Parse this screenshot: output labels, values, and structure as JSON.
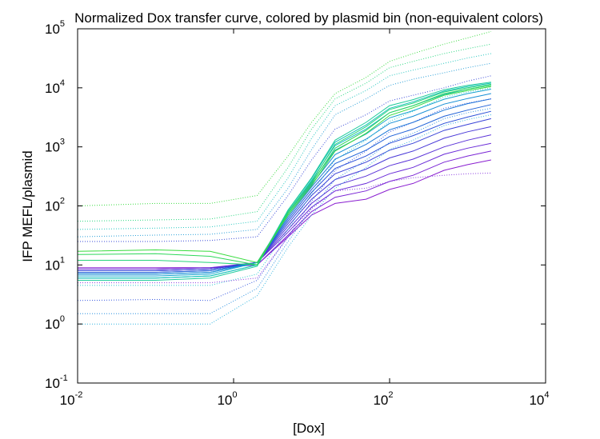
{
  "chart_data": {
    "type": "line",
    "title": "Normalized Dox transfer curve, colored by plasmid bin (non-equivalent colors)",
    "xlabel": "[Dox]",
    "ylabel": "IFP MEFL/plasmid",
    "xscale": "log",
    "yscale": "log",
    "xlim": [
      0.01,
      10000
    ],
    "ylim": [
      0.1,
      100000
    ],
    "x_ticks": [
      {
        "base": "10",
        "exp": "-2",
        "value": 0.01
      },
      {
        "base": "10",
        "exp": "0",
        "value": 1
      },
      {
        "base": "10",
        "exp": "2",
        "value": 100
      },
      {
        "base": "10",
        "exp": "4",
        "value": 10000
      }
    ],
    "y_ticks": [
      {
        "base": "10",
        "exp": "-1",
        "value": 0.1
      },
      {
        "base": "10",
        "exp": "0",
        "value": 1
      },
      {
        "base": "10",
        "exp": "1",
        "value": 10
      },
      {
        "base": "10",
        "exp": "2",
        "value": 100
      },
      {
        "base": "10",
        "exp": "3",
        "value": 1000
      },
      {
        "base": "10",
        "exp": "4",
        "value": 10000
      },
      {
        "base": "10",
        "exp": "5",
        "value": 100000
      }
    ],
    "x": [
      0.01,
      0.1,
      0.5,
      2,
      5,
      10,
      20,
      50,
      100,
      200,
      500,
      1000,
      2000
    ],
    "grid": false,
    "legend": "none",
    "series": [
      {
        "color": "#8a1fd0",
        "style": "solid",
        "values": [
          9,
          9,
          9,
          10,
          30,
          70,
          110,
          130,
          190,
          240,
          400,
          500,
          600
        ]
      },
      {
        "color": "#7a25d5",
        "style": "solid",
        "values": [
          8.5,
          8.5,
          9,
          10,
          32,
          80,
          140,
          180,
          260,
          330,
          550,
          700,
          850
        ]
      },
      {
        "color": "#6a2bd8",
        "style": "solid",
        "values": [
          8.5,
          8.5,
          9,
          11,
          36,
          95,
          180,
          240,
          350,
          450,
          750,
          950,
          1150
        ]
      },
      {
        "color": "#5a32d8",
        "style": "solid",
        "values": [
          8,
          8,
          8.5,
          11,
          40,
          110,
          220,
          320,
          480,
          620,
          1000,
          1300,
          1600
        ]
      },
      {
        "color": "#4a3ad8",
        "style": "solid",
        "values": [
          8,
          8,
          8.5,
          11,
          45,
          130,
          280,
          420,
          650,
          850,
          1400,
          1800,
          2200
        ]
      },
      {
        "color": "#3a44d8",
        "style": "solid",
        "values": [
          8,
          8,
          8.5,
          11,
          50,
          150,
          350,
          550,
          880,
          1150,
          1900,
          2400,
          3000
        ]
      },
      {
        "color": "#2a50d8",
        "style": "solid",
        "values": [
          7.5,
          7.5,
          8,
          11,
          55,
          170,
          430,
          700,
          1150,
          1550,
          2500,
          3200,
          4000
        ]
      },
      {
        "color": "#1f62d8",
        "style": "solid",
        "values": [
          7.5,
          7.5,
          8,
          11,
          60,
          190,
          520,
          880,
          1500,
          2000,
          3300,
          4200,
          5200
        ]
      },
      {
        "color": "#1a78d8",
        "style": "solid",
        "values": [
          7,
          7,
          7.5,
          11,
          65,
          210,
          620,
          1100,
          1950,
          2600,
          4200,
          5400,
          6500
        ]
      },
      {
        "color": "#168ed5",
        "style": "solid",
        "values": [
          7,
          7,
          7.5,
          11,
          70,
          230,
          740,
          1350,
          2500,
          3300,
          5300,
          6600,
          8000
        ]
      },
      {
        "color": "#14a2cf",
        "style": "solid",
        "values": [
          6.5,
          6.5,
          7,
          11,
          75,
          250,
          880,
          1650,
          3100,
          4100,
          6400,
          8000,
          9500
        ]
      },
      {
        "color": "#14b4c8",
        "style": "solid",
        "values": [
          6,
          6,
          6.5,
          10,
          80,
          270,
          1050,
          2000,
          3800,
          5000,
          7700,
          9500,
          11000
        ]
      },
      {
        "color": "#16c2b8",
        "style": "solid",
        "values": [
          6,
          6,
          6.5,
          10,
          85,
          290,
          1200,
          2350,
          4500,
          5800,
          8800,
          10500,
          12000
        ]
      },
      {
        "color": "#1ccb9a",
        "style": "solid",
        "values": [
          5.5,
          5.5,
          6,
          9.5,
          85,
          300,
          1300,
          2600,
          5000,
          6300,
          9300,
          11000,
          12500
        ]
      },
      {
        "color": "#24d47a",
        "style": "solid",
        "values": [
          12,
          12,
          11,
          10,
          80,
          260,
          1100,
          2200,
          4300,
          5500,
          8500,
          10000,
          11500
        ]
      },
      {
        "color": "#2ed85a",
        "style": "solid",
        "values": [
          15,
          15.5,
          14,
          10,
          75,
          240,
          950,
          1900,
          3800,
          5000,
          8000,
          9500,
          11000
        ]
      },
      {
        "color": "#38dc3e",
        "style": "solid",
        "values": [
          17,
          18,
          17,
          11,
          70,
          220,
          850,
          1700,
          3400,
          4600,
          7500,
          9000,
          10500
        ]
      },
      {
        "color": "#32b4e0",
        "style": "dotted",
        "values": [
          1.0,
          1.0,
          1.0,
          3.0,
          20,
          70,
          200,
          450,
          900,
          1300,
          2300,
          2900,
          3500
        ]
      },
      {
        "color": "#2a90e0",
        "style": "dotted",
        "values": [
          1.5,
          1.5,
          1.5,
          4.0,
          25,
          90,
          280,
          600,
          1200,
          1700,
          3000,
          3800,
          4500
        ]
      },
      {
        "color": "#3a5ae0",
        "style": "dotted",
        "values": [
          2.5,
          2.6,
          2.5,
          5.5,
          30,
          120,
          400,
          850,
          1800,
          2600,
          4500,
          5500,
          6500
        ]
      },
      {
        "color": "#2ec8d0",
        "style": "dotted",
        "values": [
          4.5,
          4.5,
          4.5,
          7,
          40,
          160,
          600,
          1300,
          2700,
          4000,
          7000,
          8500,
          10000
        ]
      },
      {
        "color": "#8a3ae0",
        "style": "dotted",
        "values": [
          5.0,
          5.0,
          5.0,
          6,
          30,
          90,
          180,
          200,
          260,
          300,
          330,
          350,
          360
        ]
      },
      {
        "color": "#3a4ad8",
        "style": "dotted",
        "values": [
          25,
          25,
          26,
          30,
          150,
          600,
          2000,
          3500,
          6000,
          7500,
          10000,
          13000,
          16000
        ]
      },
      {
        "color": "#2aa0d8",
        "style": "dotted",
        "values": [
          30,
          32,
          33,
          40,
          200,
          900,
          3500,
          6500,
          11000,
          14000,
          18000,
          22000,
          26000
        ]
      },
      {
        "color": "#28c8c0",
        "style": "dotted",
        "values": [
          40,
          42,
          44,
          55,
          300,
          1400,
          5000,
          9000,
          16000,
          20000,
          26000,
          32000,
          38000
        ]
      },
      {
        "color": "#2ad880",
        "style": "dotted",
        "values": [
          55,
          58,
          60,
          80,
          450,
          2000,
          6500,
          12000,
          22000,
          28000,
          38000,
          46000,
          55000
        ]
      },
      {
        "color": "#3adc40",
        "style": "dotted",
        "values": [
          100,
          110,
          110,
          150,
          700,
          2600,
          8000,
          15000,
          28000,
          38000,
          55000,
          70000,
          90000
        ]
      }
    ]
  }
}
